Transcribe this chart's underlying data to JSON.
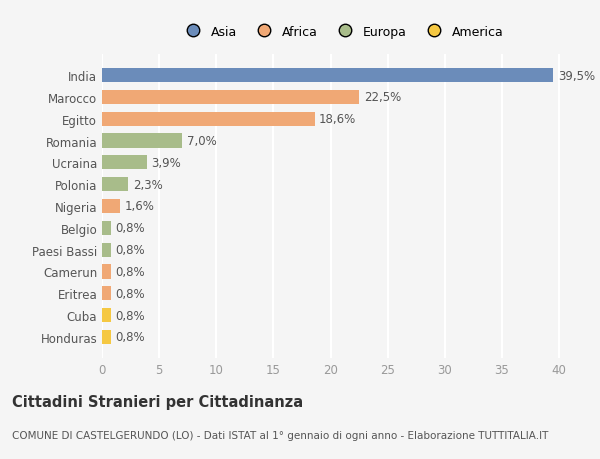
{
  "categories": [
    "India",
    "Marocco",
    "Egitto",
    "Romania",
    "Ucraina",
    "Polonia",
    "Nigeria",
    "Belgio",
    "Paesi Bassi",
    "Camerun",
    "Eritrea",
    "Cuba",
    "Honduras"
  ],
  "values": [
    39.5,
    22.5,
    18.6,
    7.0,
    3.9,
    2.3,
    1.6,
    0.8,
    0.8,
    0.8,
    0.8,
    0.8,
    0.8
  ],
  "labels": [
    "39,5%",
    "22,5%",
    "18,6%",
    "7,0%",
    "3,9%",
    "2,3%",
    "1,6%",
    "0,8%",
    "0,8%",
    "0,8%",
    "0,8%",
    "0,8%",
    "0,8%"
  ],
  "colors": [
    "#6b8cba",
    "#f0a875",
    "#f0a875",
    "#a8bc8a",
    "#a8bc8a",
    "#a8bc8a",
    "#f0a875",
    "#a8bc8a",
    "#a8bc8a",
    "#f0a875",
    "#f0a875",
    "#f5c842",
    "#f5c842"
  ],
  "legend_labels": [
    "Asia",
    "Africa",
    "Europa",
    "America"
  ],
  "legend_colors": [
    "#6b8cba",
    "#f0a875",
    "#a8bc8a",
    "#f5c842"
  ],
  "xlim": [
    0,
    42
  ],
  "xticks": [
    0,
    5,
    10,
    15,
    20,
    25,
    30,
    35,
    40
  ],
  "title": "Cittadini Stranieri per Cittadinanza",
  "subtitle": "COMUNE DI CASTELGERUNDO (LO) - Dati ISTAT al 1° gennaio di ogni anno - Elaborazione TUTTITALIA.IT",
  "background_color": "#f5f5f5",
  "grid_color": "#ffffff",
  "bar_height": 0.65,
  "label_fontsize": 8.5,
  "tick_fontsize": 8.5,
  "title_fontsize": 10.5,
  "subtitle_fontsize": 7.5
}
